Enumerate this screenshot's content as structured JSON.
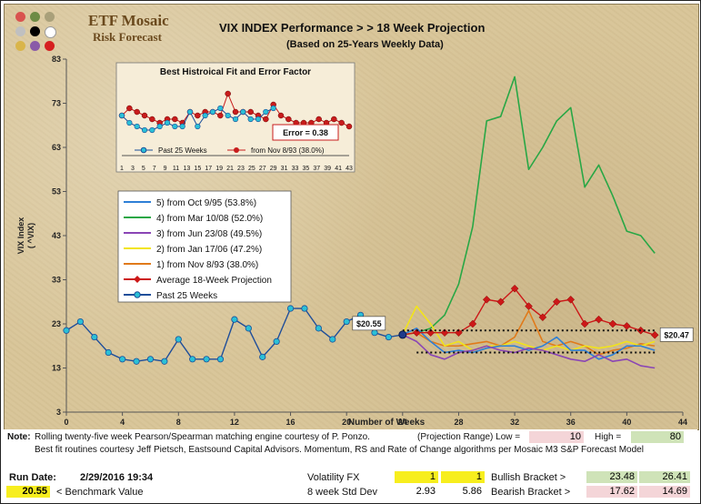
{
  "header": {
    "logo_title": "ETF Mosaic",
    "logo_subtitle": "Risk Forecast",
    "logo_dot_colors": [
      "#d9534f",
      "#6d8b45",
      "#a9a07a",
      "#c0c0c0",
      "#000000",
      "#ffffff",
      "#d9b54a",
      "#8a5aa8",
      "#d62020",
      "#3a5aa8",
      "#e08020",
      "#7a3aa0"
    ],
    "title": "VIX  INDEX Performance > > 18 Week Projection",
    "subtitle": "(Based on 25-Years Weekly Data)"
  },
  "chart_data": {
    "type": "line",
    "xlabel": "Number of Weeks",
    "ylabel": "VIX Index\n( ^VIX)",
    "xlim": [
      0,
      44
    ],
    "ylim": [
      3,
      83
    ],
    "x_ticks": [
      0,
      4,
      8,
      12,
      16,
      20,
      24,
      28,
      32,
      36,
      40,
      44
    ],
    "y_ticks": [
      3,
      13,
      23,
      33,
      43,
      53,
      63,
      73,
      83
    ],
    "grid": false,
    "legend_position": "left",
    "series": [
      {
        "name": "5)  from Oct 9/95 (53.8%)",
        "color": "#2e7fd6",
        "x": [
          24,
          25,
          26,
          27,
          28,
          29,
          30,
          31,
          32,
          33,
          34,
          35,
          36,
          37,
          38,
          39,
          40,
          41,
          42
        ],
        "values": [
          20.55,
          22,
          19,
          16.5,
          17,
          16.5,
          17.5,
          18,
          18,
          17,
          18,
          20,
          17,
          17,
          15,
          16,
          18,
          18,
          17
        ]
      },
      {
        "name": "4)  from Mar 10/08 (52.0%)",
        "color": "#28a745",
        "x": [
          24,
          25,
          26,
          27,
          28,
          29,
          30,
          31,
          32,
          33,
          34,
          35,
          36,
          37,
          38,
          39,
          40,
          41,
          42
        ],
        "values": [
          20.55,
          21,
          22,
          25,
          32,
          45,
          69,
          70,
          79,
          58,
          63,
          69,
          72,
          54,
          59,
          52,
          44,
          43,
          39
        ]
      },
      {
        "name": "3)  from Jun 23/08 (49.5%)",
        "color": "#8a45b5",
        "x": [
          24,
          25,
          26,
          27,
          28,
          29,
          30,
          31,
          32,
          33,
          34,
          35,
          36,
          37,
          38,
          39,
          40,
          41,
          42
        ],
        "values": [
          20.55,
          19,
          16,
          15,
          16.5,
          17,
          18,
          17,
          16.5,
          17.5,
          17,
          16,
          15,
          14.5,
          16,
          14.5,
          15,
          13.5,
          13
        ]
      },
      {
        "name": "2)  from Jan 17/06 (47.2%)",
        "color": "#f2e418",
        "x": [
          24,
          25,
          26,
          27,
          28,
          29,
          30,
          31,
          32,
          33,
          34,
          35,
          36,
          37,
          38,
          39,
          40,
          41,
          42
        ],
        "values": [
          20.55,
          27,
          23,
          18,
          19,
          17,
          18,
          18,
          19,
          18,
          17,
          18,
          17,
          18,
          17.5,
          18,
          19,
          18,
          19
        ]
      },
      {
        "name": "1)  from Nov 8/93 (38.0%)",
        "color": "#e07a1a",
        "x": [
          24,
          25,
          26,
          27,
          28,
          29,
          30,
          31,
          32,
          33,
          34,
          35,
          36,
          37,
          38,
          39,
          40,
          41,
          42
        ],
        "values": [
          20.55,
          21,
          19,
          18,
          18,
          18.5,
          19,
          18,
          20,
          26,
          19,
          18,
          19,
          18,
          16,
          17,
          17.5,
          18.5,
          18
        ]
      },
      {
        "name": "Average 18-Week Projection",
        "color": "#cc1818",
        "x": [
          24,
          25,
          26,
          27,
          28,
          29,
          30,
          31,
          32,
          33,
          34,
          35,
          36,
          37,
          38,
          39,
          40,
          41,
          42
        ],
        "values": [
          20.55,
          21,
          21,
          21,
          21,
          23,
          28.5,
          28,
          31,
          27,
          24.5,
          28,
          28.5,
          23,
          24,
          23,
          22.5,
          21.5,
          20.47
        ]
      },
      {
        "name": "Past 25 Weeks",
        "color": "#1f4e9a",
        "x": [
          0,
          1,
          2,
          3,
          4,
          5,
          6,
          7,
          8,
          9,
          10,
          11,
          12,
          13,
          14,
          15,
          16,
          17,
          18,
          19,
          20,
          21,
          22,
          23,
          24
        ],
        "values": [
          21.5,
          23.5,
          20,
          16.5,
          15,
          14.5,
          15,
          14.5,
          19.5,
          15,
          15,
          15,
          24,
          22,
          15.5,
          19,
          26.5,
          26.5,
          22,
          19.5,
          23.5,
          25,
          21,
          20,
          20.55
        ]
      }
    ],
    "bracket_lines": [
      {
        "name": "upper",
        "x": [
          24,
          42
        ],
        "y": 21.5
      },
      {
        "name": "lower",
        "x": [
          25,
          42
        ],
        "y": 16.5
      }
    ],
    "annotations": [
      {
        "text": "$20.55",
        "x": 24,
        "y": 20.55
      },
      {
        "text": "$20.47",
        "x": 42,
        "y": 20.47
      }
    ]
  },
  "inset": {
    "title": "Best  Histroical Fit and Error Factor",
    "error_label": "Error = 0.38",
    "x_ticks": [
      "1",
      "3",
      "5",
      "7",
      "9",
      "11",
      "13",
      "15",
      "17",
      "19",
      "21",
      "23",
      "25",
      "27",
      "29",
      "31",
      "33",
      "35",
      "37",
      "39",
      "41",
      "43"
    ],
    "legend_past": "Past 25 Weeks",
    "legend_fit": "from Nov 8/93 (38.0%)",
    "past_values": [
      71,
      69,
      68,
      67,
      67,
      68,
      69,
      68,
      68,
      72,
      68,
      71,
      72,
      73,
      71,
      70,
      72,
      70,
      70,
      72,
      73
    ],
    "fit_values": [
      71,
      73,
      72,
      71,
      70,
      69,
      70,
      70,
      69,
      72,
      71,
      72,
      72,
      71,
      77,
      72,
      72,
      72,
      71,
      70,
      74,
      71,
      70,
      69,
      69,
      69,
      70,
      69,
      70,
      69,
      68
    ],
    "fit_color": "#c81c1c",
    "past_color": "#2bc0d6"
  },
  "footer": {
    "note_label": "Note:",
    "note_text": "Rolling twenty-five week Pearson/Spearman matching engine courtesy of P. Ponzo.",
    "projection_range_label": "(Projection Range) Low =",
    "low_value": "10",
    "high_label": "High =",
    "high_value": "80",
    "courtesy_text": "Best fit routines courtesy Jeff Pietsch, Eastsound Capital Advisors.     Momentum, RS and Rate of Change algorithms per Mosaic M3 S&P Forecast Model",
    "run_date_label": "Run Date:",
    "run_date_value": "2/29/2016 19:34",
    "benchmark_value": "20.55",
    "benchmark_label": "< Benchmark Value",
    "volatility_label": "Volatility FX",
    "vol_fx_1": "1",
    "vol_fx_2": "1",
    "std_label": "8 week Std Dev",
    "std_1": "2.93",
    "std_2": "5.86",
    "bullish_label": "Bullish Bracket >",
    "bullish_1": "23.48",
    "bullish_2": "26.41",
    "bearish_label": "Bearish Bracket >",
    "bearish_1": "17.62",
    "bearish_2": "14.69"
  }
}
